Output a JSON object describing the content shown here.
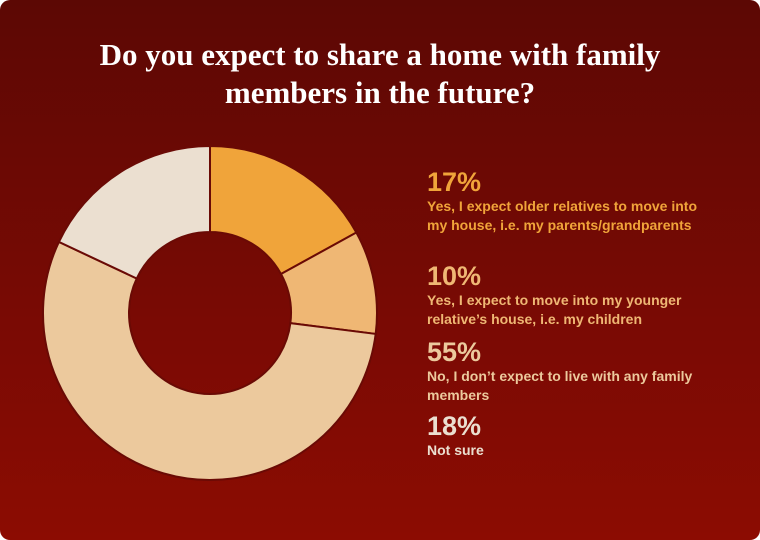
{
  "chart_data": {
    "type": "pie",
    "donut": true,
    "title": "Do you expect to share a home with family members in the future?",
    "categories": [
      "Yes, I expect older relatives to move into my house, i.e. my parents/grandparents",
      "Yes, I expect to move into my younger relative’s house, i.e. my children",
      "No, I don’t expect to live with any family members",
      "Not sure"
    ],
    "values": [
      17,
      10,
      55,
      18
    ],
    "value_labels": [
      "17%",
      "10%",
      "55%",
      "18%"
    ],
    "colors": [
      "#f0a43a",
      "#efb774",
      "#ecc99d",
      "#ebdfd0"
    ]
  }
}
